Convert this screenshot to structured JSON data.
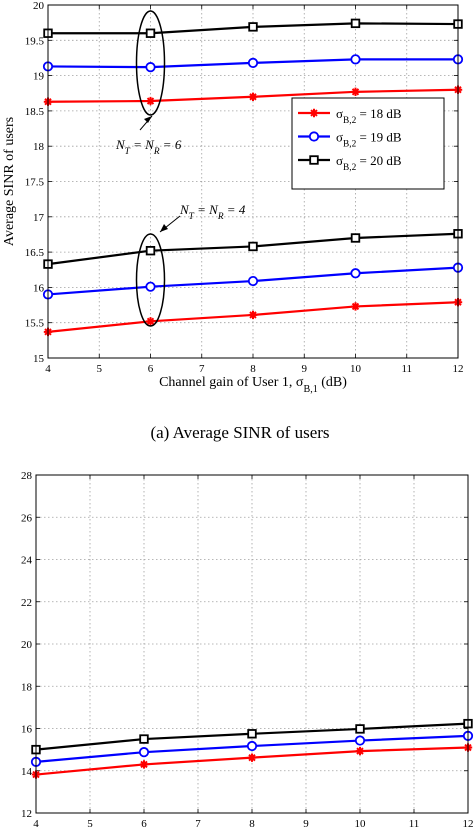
{
  "chart_data": [
    {
      "type": "line",
      "xlabel": "Channel gain of User 1, σ_{B,1} (dB)",
      "ylabel": "Average SINR of users",
      "caption": "(a) Average SINR of users",
      "xlim": [
        4,
        12
      ],
      "ylim": [
        15,
        20
      ],
      "xticks": [
        4,
        5,
        6,
        7,
        8,
        9,
        10,
        11,
        12
      ],
      "yticks": [
        15,
        15.5,
        16,
        16.5,
        17,
        17.5,
        18,
        18.5,
        19,
        19.5,
        20
      ],
      "grid": true,
      "legend_position": "center-right",
      "x": [
        4,
        6,
        8,
        10,
        12
      ],
      "series": [
        {
          "name": "σ_{B,2} = 18 dB",
          "group": "N_T = N_R = 6",
          "color": "#ff0000",
          "marker": "star",
          "values": [
            18.63,
            18.64,
            18.7,
            18.77,
            18.8
          ]
        },
        {
          "name": "σ_{B,2} = 19 dB",
          "group": "N_T = N_R = 6",
          "color": "#0000ff",
          "marker": "circle",
          "values": [
            19.13,
            19.12,
            19.18,
            19.23,
            19.23
          ]
        },
        {
          "name": "σ_{B,2} = 20 dB",
          "group": "N_T = N_R = 6",
          "color": "#000000",
          "marker": "square",
          "values": [
            19.6,
            19.6,
            19.69,
            19.74,
            19.73
          ]
        },
        {
          "name": "σ_{B,2} = 18 dB",
          "group": "N_T = N_R = 4",
          "color": "#ff0000",
          "marker": "star",
          "values": [
            15.37,
            15.52,
            15.61,
            15.73,
            15.79
          ]
        },
        {
          "name": "σ_{B,2} = 19 dB",
          "group": "N_T = N_R = 4",
          "color": "#0000ff",
          "marker": "circle",
          "values": [
            15.9,
            16.01,
            16.09,
            16.2,
            16.28
          ]
        },
        {
          "name": "σ_{B,2} = 20 dB",
          "group": "N_T = N_R = 4",
          "color": "#000000",
          "marker": "square",
          "values": [
            16.33,
            16.52,
            16.58,
            16.7,
            16.76
          ]
        }
      ],
      "legend": [
        {
          "label": "σ_{B,2} = 18 dB",
          "color": "#ff0000",
          "marker": "star"
        },
        {
          "label": "σ_{B,2} = 19 dB",
          "color": "#0000ff",
          "marker": "circle"
        },
        {
          "label": "σ_{B,2} = 20 dB",
          "color": "#000000",
          "marker": "square"
        }
      ],
      "annotations": [
        {
          "text": "N_T = N_R = 6",
          "x": 6
        },
        {
          "text": "N_T = N_R = 4",
          "x": 6
        }
      ]
    },
    {
      "type": "line",
      "xlabel": "",
      "ylabel": "",
      "xlim": [
        4,
        12
      ],
      "ylim": [
        12,
        28
      ],
      "xticks": [
        4,
        5,
        6,
        7,
        8,
        9,
        10,
        11,
        12
      ],
      "yticks": [
        12,
        14,
        16,
        18,
        20,
        22,
        24,
        26,
        28
      ],
      "grid": true,
      "x": [
        4,
        6,
        8,
        10,
        12
      ],
      "series": [
        {
          "color": "#ff0000",
          "marker": "star",
          "values": [
            13.82,
            14.3,
            14.62,
            14.93,
            15.1
          ]
        },
        {
          "color": "#0000ff",
          "marker": "circle",
          "values": [
            14.42,
            14.88,
            15.17,
            15.43,
            15.65
          ]
        },
        {
          "color": "#000000",
          "marker": "square",
          "values": [
            15.0,
            15.5,
            15.75,
            15.98,
            16.23
          ]
        }
      ]
    }
  ]
}
